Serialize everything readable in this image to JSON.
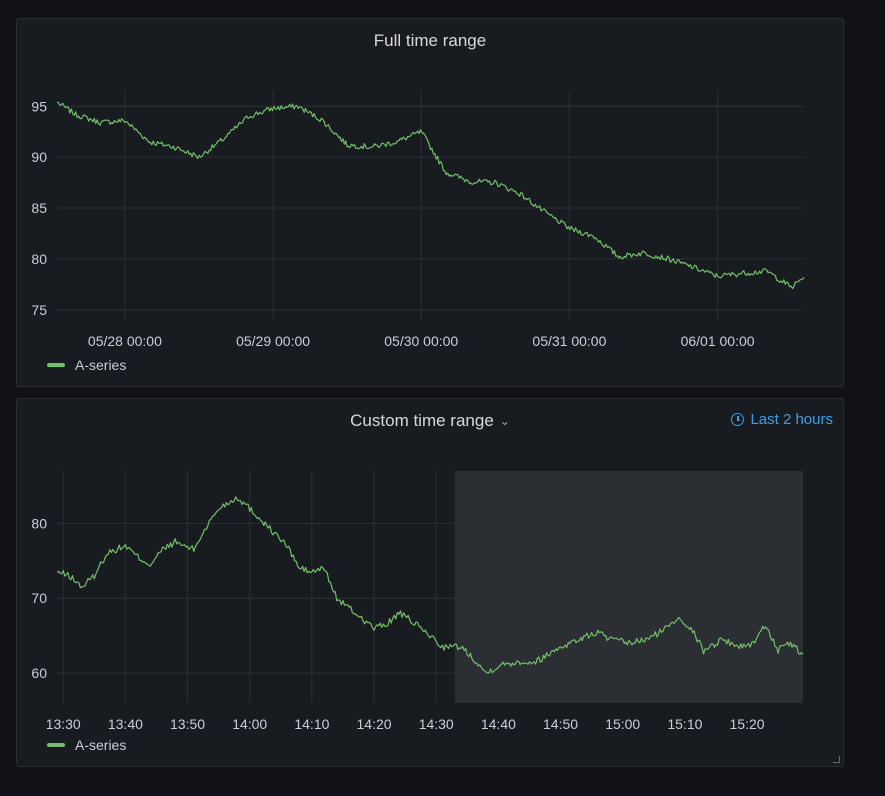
{
  "colors": {
    "series": "#73bf69",
    "grid": "#2c2f35",
    "highlight": "#2b2e33",
    "link": "#3d9ee8"
  },
  "panels": [
    {
      "title": "Full time range",
      "legend": "A-series",
      "chart_data": {
        "type": "line",
        "title": "Full time range",
        "x_ticks": [
          "05/28 00:00",
          "05/29 00:00",
          "05/30 00:00",
          "05/31 00:00",
          "06/01 00:00"
        ],
        "y_ticks": [
          95,
          90,
          85,
          80,
          75
        ],
        "xlim": [
          "05/27 13:00",
          "06/01 14:00"
        ],
        "ylim": [
          74,
          96.5
        ],
        "grid": true,
        "legend_position": "bottom-left",
        "series": [
          {
            "name": "A-series",
            "x": [
              "05/27 13:00",
              "05/27 16:00",
              "05/27 20:00",
              "05/28 00:00",
              "05/28 04:00",
              "05/28 08:00",
              "05/28 12:00",
              "05/28 16:00",
              "05/28 20:00",
              "05/29 00:00",
              "05/29 04:00",
              "05/29 08:00",
              "05/29 12:00",
              "05/29 16:00",
              "05/29 20:00",
              "05/30 00:00",
              "05/30 04:00",
              "05/30 08:00",
              "05/30 12:00",
              "05/30 16:00",
              "05/30 20:00",
              "05/31 00:00",
              "05/31 04:00",
              "05/31 08:00",
              "05/31 12:00",
              "05/31 16:00",
              "05/31 20:00",
              "06/01 00:00",
              "06/01 04:00",
              "06/01 08:00",
              "06/01 12:00",
              "06/01 14:00"
            ],
            "values": [
              95.4,
              94.2,
              93.4,
              93.6,
              91.5,
              91.0,
              90.0,
              91.8,
              94.0,
              94.8,
              95.0,
              93.6,
              91.2,
              91.0,
              91.5,
              92.5,
              88.5,
              87.6,
              87.5,
              86.4,
              84.6,
              83.0,
              82.2,
              80.2,
              80.6,
              80.0,
              79.2,
              78.3,
              78.6,
              78.8,
              77.2,
              78.2
            ]
          }
        ]
      }
    },
    {
      "title": "Custom time range",
      "override_label": "Last 2 hours",
      "legend": "A-series",
      "chart_data": {
        "type": "line",
        "title": "Custom time range",
        "x_ticks": [
          "13:30",
          "13:40",
          "13:50",
          "14:00",
          "14:10",
          "14:20",
          "14:30",
          "14:40",
          "14:50",
          "15:00",
          "15:10",
          "15:20"
        ],
        "y_ticks": [
          80,
          70,
          60
        ],
        "xlim": [
          "13:29",
          "15:29"
        ],
        "ylim": [
          56,
          87
        ],
        "grid": true,
        "highlight_region": [
          "14:33",
          "15:29"
        ],
        "legend_position": "bottom-left",
        "series": [
          {
            "name": "A-series",
            "x": [
              "13:29",
              "13:31",
              "13:33",
              "13:35",
              "13:37",
              "13:40",
              "13:42",
              "13:44",
              "13:46",
              "13:48",
              "13:51",
              "13:53",
              "13:55",
              "13:58",
              "14:00",
              "14:03",
              "14:06",
              "14:08",
              "14:10",
              "14:12",
              "14:14",
              "14:17",
              "14:20",
              "14:22",
              "14:24",
              "14:26",
              "14:29",
              "14:31",
              "14:34",
              "14:36",
              "14:38",
              "14:40",
              "14:43",
              "14:46",
              "14:48",
              "14:50",
              "14:53",
              "14:56",
              "14:58",
              "15:01",
              "15:04",
              "15:07",
              "15:09",
              "15:11",
              "15:13",
              "15:16",
              "15:19",
              "15:21",
              "15:23",
              "15:25",
              "15:27",
              "15:29"
            ],
            "values": [
              73.5,
              73.0,
              71.5,
              73.0,
              76.0,
              77.0,
              75.5,
              74.5,
              76.5,
              77.5,
              76.5,
              79.5,
              82.0,
              83.5,
              82.0,
              79.5,
              77.0,
              74.0,
              73.5,
              74.0,
              70.0,
              68.0,
              66.0,
              66.5,
              68.0,
              67.0,
              65.0,
              63.5,
              63.5,
              62.0,
              60.0,
              61.0,
              61.5,
              61.5,
              62.5,
              63.5,
              64.5,
              65.5,
              64.5,
              64.0,
              64.5,
              66.0,
              67.5,
              66.0,
              63.0,
              64.5,
              63.5,
              64.0,
              66.5,
              63.0,
              64.0,
              62.5
            ]
          }
        ]
      }
    }
  ]
}
